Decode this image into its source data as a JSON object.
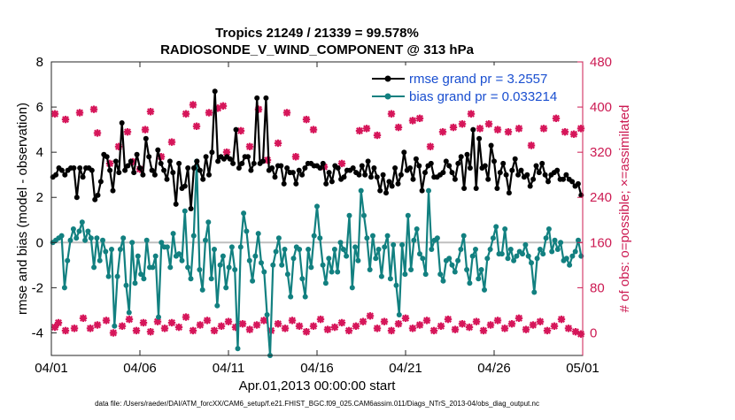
{
  "chart_data": {
    "type": "line",
    "title": [
      "Tropics 21249 / 21339 = 99.578%",
      "RADIOSONDE_V_WIND_COMPONENT @ 313 hPa"
    ],
    "xlabel": "Apr.01,2013 00:00:00 start",
    "ylabel": "rmse and bias (model - observation)",
    "ylabel_right": "# of obs: o=possible; ×=assimilated",
    "footnote": "data file: /Users/raeder/DAI/ATM_forcXX/CAM6_setup/f.e21.FHIST_BGC.f09_025.CAM6assim.011/Diags_NTrS_2013-04/obs_diag_output.nc",
    "xlim": [
      0,
      30
    ],
    "ylim": [
      -5,
      8
    ],
    "ylim_right": [
      -40,
      480
    ],
    "x_tick_values": [
      0,
      5,
      10,
      15,
      20,
      25,
      30
    ],
    "x_tick_labels": [
      "04/01",
      "04/06",
      "04/11",
      "04/16",
      "04/21",
      "04/26",
      "05/01"
    ],
    "y_ticks": [
      -4,
      -2,
      0,
      2,
      4,
      6,
      8
    ],
    "y_ticks_right": [
      0,
      80,
      160,
      240,
      320,
      400,
      480
    ],
    "zero_line": 0,
    "colors": {
      "rmse": "#000000",
      "bias": "#128080",
      "obs": "#d6165a",
      "zero": "#bfbfbf",
      "right_axis": "#cc1a52",
      "legend_text": "#1a4fd0"
    },
    "legend": [
      {
        "name": "rmse",
        "label": "rmse grand pr = 3.2557",
        "color": "#000000"
      },
      {
        "name": "bias",
        "label": "bias grand pr = 0.033214",
        "color": "#128080"
      }
    ],
    "series": [
      {
        "name": "rmse",
        "axis": "left",
        "values": [
          2.9,
          3.0,
          3.3,
          3.2,
          3.0,
          3.2,
          3.3,
          3.3,
          2.0,
          3.3,
          2.9,
          3.3,
          3.3,
          3.2,
          1.9,
          2.1,
          2.7,
          3.9,
          3.8,
          3.2,
          2.3,
          3.6,
          3.1,
          5.3,
          3.2,
          3.4,
          3.6,
          3.1,
          3.9,
          3.3,
          3.0,
          4.6,
          3.8,
          3.2,
          3.0,
          4.1,
          3.5,
          3.2,
          2.8,
          3.6,
          3.1,
          1.7,
          3.5,
          2.4,
          2.5,
          3.3,
          1.5,
          3.3,
          3.6,
          3.2,
          2.8,
          3.8,
          3.0,
          4.0,
          6.7,
          3.6,
          3.8,
          3.7,
          3.8,
          3.7,
          3.5,
          5.0,
          3.3,
          3.5,
          3.8,
          3.8,
          3.2,
          3.5,
          6.4,
          3.5,
          3.6,
          6.4,
          3.2,
          3.3,
          2.9,
          3.4,
          3.4,
          2.6,
          3.3,
          3.1,
          3.1,
          2.6,
          3.2,
          3.0,
          3.3,
          3.5,
          3.5,
          3.4,
          3.4,
          3.3,
          3.5,
          2.6,
          3.1,
          2.7,
          3.4,
          3.3,
          2.8,
          2.9,
          3.2,
          3.2,
          3.3,
          3.1,
          3.0,
          3.4,
          3.0,
          3.6,
          2.9,
          3.3,
          2.9,
          2.3,
          3.0,
          2.2,
          2.7,
          2.5,
          3.3,
          2.6,
          3.0,
          4.0,
          3.2,
          3.3,
          2.8,
          3.7,
          3.4,
          2.3,
          3.1,
          3.4,
          3.5,
          2.9,
          2.9,
          3.0,
          3.1,
          3.6,
          3.4,
          3.1,
          2.8,
          3.5,
          3.8,
          2.4,
          3.9,
          3.3,
          5.0,
          2.4,
          4.6,
          3.3,
          3.4,
          2.8,
          4.3,
          3.6,
          2.4,
          3.1,
          3.5,
          3.0,
          2.2,
          3.2,
          3.7,
          3.0,
          3.2,
          2.9,
          3.0,
          2.5,
          2.8,
          3.4,
          3.1,
          3.5,
          3.0,
          2.7,
          3.0,
          3.1,
          3.2,
          2.8,
          2.8,
          3.0,
          2.8,
          2.7,
          2.5,
          2.6,
          2.1
        ]
      },
      {
        "name": "bias",
        "axis": "left",
        "values": [
          0.0,
          0.1,
          0.2,
          0.3,
          -2.0,
          -0.8,
          0.1,
          0.6,
          0.2,
          0.5,
          0.9,
          0.1,
          0.5,
          0.2,
          -1.1,
          0.2,
          -0.8,
          0.1,
          -0.4,
          -1.5,
          -0.3,
          -3.7,
          -1.5,
          -0.3,
          0.2,
          -1.9,
          -3.1,
          0.0,
          -1.8,
          -0.6,
          -1.4,
          -1.6,
          0.1,
          -1.1,
          -1.1,
          -0.6,
          -3.3,
          0.0,
          -0.2,
          -0.2,
          -1.1,
          0.4,
          -0.6,
          -0.5,
          -0.8,
          1.4,
          -1.1,
          -1.6,
          0.3,
          3.6,
          -1.2,
          -2.1,
          0.1,
          0.9,
          -1.6,
          -0.3,
          -2.8,
          -1.0,
          -0.6,
          -2.0,
          -1.1,
          -0.2,
          -1.2,
          -4.7,
          -0.2,
          1.3,
          0.5,
          -0.8,
          -1.7,
          -0.6,
          0.4,
          -0.9,
          -1.3,
          -3.2,
          -5.0,
          -1.0,
          -0.4,
          0.2,
          -1.0,
          -0.3,
          -1.4,
          -2.4,
          -0.7,
          -0.2,
          -0.3,
          -1.6,
          -2.4,
          -0.3,
          -1.1,
          0.3,
          1.6,
          0.2,
          -1.0,
          -1.8,
          -0.7,
          -1.3,
          -0.3,
          -1.3,
          0.0,
          -0.3,
          -0.6,
          1.2,
          -2.0,
          -0.2,
          -0.8,
          2.3,
          1.2,
          0.2,
          -1.2,
          0.3,
          -0.7,
          -0.3,
          -1.5,
          -0.2,
          0.3,
          -1.6,
          -0.1,
          -1.9,
          -3.2,
          -0.1,
          -1.4,
          1.2,
          -1.2,
          0.1,
          0.6,
          -0.5,
          -0.7,
          -1.4,
          2.3,
          -0.3,
          0.1,
          0.2,
          -1.4,
          -1.7,
          -0.8,
          -0.7,
          -1.0,
          -1.3,
          -0.8,
          -0.3,
          0.3,
          -1.2,
          -1.8,
          -0.6,
          -0.3,
          -1.6,
          -1.2,
          -2.1,
          -0.7,
          -0.3,
          0.2,
          0.7,
          -0.5,
          -0.5,
          0.6,
          -0.7,
          -0.3,
          -0.8,
          -0.6,
          -0.4,
          -0.5,
          -0.1,
          -0.6,
          -0.9,
          -2.2,
          -0.7,
          -0.3,
          -0.5,
          0.2,
          0.6,
          -0.4,
          0.1,
          -0.3,
          0.0,
          -0.8,
          -0.7,
          -1.0,
          -0.6,
          -0.4,
          0.1,
          -0.6
        ]
      }
    ],
    "obs_possible": [
      {
        "x": 0.2,
        "y": 388
      },
      {
        "x": 0.8,
        "y": 378
      },
      {
        "x": 1.6,
        "y": 390
      },
      {
        "x": 2.4,
        "y": 396
      },
      {
        "x": 2.6,
        "y": 354
      },
      {
        "x": 3.3,
        "y": 300
      },
      {
        "x": 3.8,
        "y": 330
      },
      {
        "x": 4.3,
        "y": 356
      },
      {
        "x": 4.6,
        "y": 303
      },
      {
        "x": 5.0,
        "y": 290
      },
      {
        "x": 5.3,
        "y": 360
      },
      {
        "x": 5.6,
        "y": 392
      },
      {
        "x": 6.2,
        "y": 312
      },
      {
        "x": 6.8,
        "y": 338
      },
      {
        "x": 7.6,
        "y": 388
      },
      {
        "x": 8.0,
        "y": 404
      },
      {
        "x": 8.2,
        "y": 366
      },
      {
        "x": 8.9,
        "y": 390
      },
      {
        "x": 9.4,
        "y": 398
      },
      {
        "x": 9.7,
        "y": 402
      },
      {
        "x": 9.9,
        "y": 320
      },
      {
        "x": 10.7,
        "y": 358
      },
      {
        "x": 11.2,
        "y": 330
      },
      {
        "x": 11.7,
        "y": 396
      },
      {
        "x": 12.2,
        "y": 306
      },
      {
        "x": 12.8,
        "y": 336
      },
      {
        "x": 13.3,
        "y": 390
      },
      {
        "x": 13.8,
        "y": 312
      },
      {
        "x": 14.4,
        "y": 378
      },
      {
        "x": 14.8,
        "y": 360
      },
      {
        "x": 15.4,
        "y": 294
      },
      {
        "x": 16.4,
        "y": 300
      },
      {
        "x": 17.4,
        "y": 358
      },
      {
        "x": 17.8,
        "y": 362
      },
      {
        "x": 18.4,
        "y": 350
      },
      {
        "x": 19.2,
        "y": 388
      },
      {
        "x": 19.6,
        "y": 364
      },
      {
        "x": 20.4,
        "y": 376
      },
      {
        "x": 20.8,
        "y": 380
      },
      {
        "x": 21.4,
        "y": 330
      },
      {
        "x": 22.1,
        "y": 356
      },
      {
        "x": 22.7,
        "y": 364
      },
      {
        "x": 23.2,
        "y": 370
      },
      {
        "x": 23.7,
        "y": 388
      },
      {
        "x": 24.2,
        "y": 362
      },
      {
        "x": 24.7,
        "y": 370
      },
      {
        "x": 25.2,
        "y": 360
      },
      {
        "x": 25.8,
        "y": 356
      },
      {
        "x": 26.4,
        "y": 362
      },
      {
        "x": 27.1,
        "y": 332
      },
      {
        "x": 27.8,
        "y": 362
      },
      {
        "x": 28.5,
        "y": 380
      },
      {
        "x": 29.0,
        "y": 356
      },
      {
        "x": 29.5,
        "y": 352
      },
      {
        "x": 29.9,
        "y": 362
      }
    ],
    "obs_assimilated": [
      {
        "x": 0.2,
        "y": 10
      },
      {
        "x": 0.4,
        "y": 18
      },
      {
        "x": 0.8,
        "y": 4
      },
      {
        "x": 1.3,
        "y": 8
      },
      {
        "x": 1.8,
        "y": 26
      },
      {
        "x": 2.2,
        "y": 8
      },
      {
        "x": 2.6,
        "y": 14
      },
      {
        "x": 3.1,
        "y": 22
      },
      {
        "x": 3.5,
        "y": 0
      },
      {
        "x": 4.0,
        "y": 12
      },
      {
        "x": 4.4,
        "y": 24
      },
      {
        "x": 4.8,
        "y": 4
      },
      {
        "x": 5.2,
        "y": 18
      },
      {
        "x": 5.6,
        "y": 2
      },
      {
        "x": 6.0,
        "y": 20
      },
      {
        "x": 6.4,
        "y": 8
      },
      {
        "x": 6.8,
        "y": 18
      },
      {
        "x": 7.2,
        "y": 10
      },
      {
        "x": 7.6,
        "y": 28
      },
      {
        "x": 8.0,
        "y": 4
      },
      {
        "x": 8.4,
        "y": 14
      },
      {
        "x": 8.8,
        "y": 22
      },
      {
        "x": 9.2,
        "y": 4
      },
      {
        "x": 9.6,
        "y": 12
      },
      {
        "x": 10.0,
        "y": 20
      },
      {
        "x": 10.4,
        "y": 10
      },
      {
        "x": 10.8,
        "y": 16
      },
      {
        "x": 11.2,
        "y": 6
      },
      {
        "x": 11.6,
        "y": 14
      },
      {
        "x": 12.0,
        "y": 22
      },
      {
        "x": 12.4,
        "y": 4
      },
      {
        "x": 12.8,
        "y": 16
      },
      {
        "x": 13.2,
        "y": 8
      },
      {
        "x": 13.6,
        "y": 22
      },
      {
        "x": 14.0,
        "y": 12
      },
      {
        "x": 14.4,
        "y": 2
      },
      {
        "x": 14.8,
        "y": 12
      },
      {
        "x": 15.2,
        "y": 24
      },
      {
        "x": 15.6,
        "y": 6
      },
      {
        "x": 16.0,
        "y": 10
      },
      {
        "x": 16.4,
        "y": 18
      },
      {
        "x": 16.8,
        "y": 4
      },
      {
        "x": 17.2,
        "y": 12
      },
      {
        "x": 17.6,
        "y": 20
      },
      {
        "x": 18.0,
        "y": 30
      },
      {
        "x": 18.4,
        "y": 8
      },
      {
        "x": 18.8,
        "y": 20
      },
      {
        "x": 19.2,
        "y": 4
      },
      {
        "x": 19.6,
        "y": 16
      },
      {
        "x": 20.0,
        "y": 26
      },
      {
        "x": 20.4,
        "y": 8
      },
      {
        "x": 20.8,
        "y": 14
      },
      {
        "x": 21.2,
        "y": 22
      },
      {
        "x": 21.6,
        "y": 4
      },
      {
        "x": 22.0,
        "y": 12
      },
      {
        "x": 22.4,
        "y": 24
      },
      {
        "x": 22.8,
        "y": 6
      },
      {
        "x": 23.2,
        "y": 16
      },
      {
        "x": 23.6,
        "y": 10
      },
      {
        "x": 24.0,
        "y": 20
      },
      {
        "x": 24.4,
        "y": 4
      },
      {
        "x": 24.8,
        "y": 14
      },
      {
        "x": 25.2,
        "y": 22
      },
      {
        "x": 25.6,
        "y": 8
      },
      {
        "x": 26.0,
        "y": 16
      },
      {
        "x": 26.4,
        "y": 26
      },
      {
        "x": 26.8,
        "y": 6
      },
      {
        "x": 27.2,
        "y": 14
      },
      {
        "x": 27.6,
        "y": 20
      },
      {
        "x": 28.0,
        "y": 4
      },
      {
        "x": 28.4,
        "y": 12
      },
      {
        "x": 28.8,
        "y": 24
      },
      {
        "x": 29.2,
        "y": 8
      },
      {
        "x": 29.6,
        "y": 2
      },
      {
        "x": 29.9,
        "y": -2
      }
    ]
  }
}
